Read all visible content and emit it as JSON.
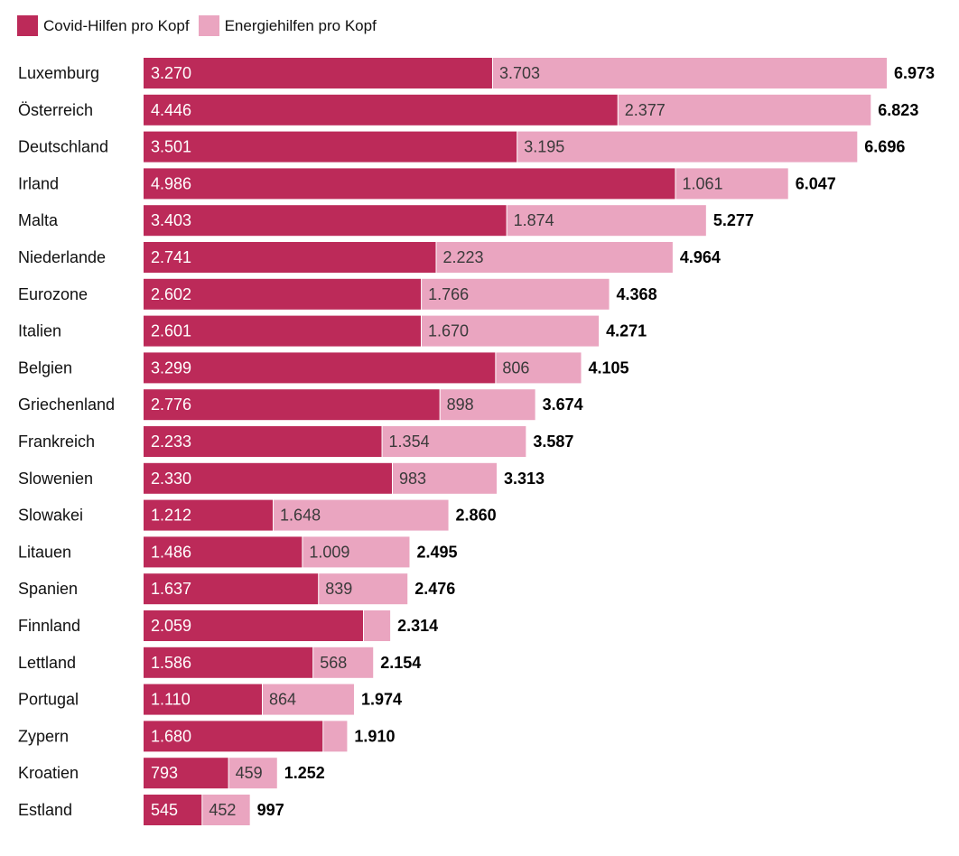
{
  "colors": {
    "covid": "#bc2a59",
    "energie": "#eaa5c0",
    "covid_text": "#ffffff",
    "energie_text": "#3a3a3a",
    "total_text": "#000000"
  },
  "chart_data": {
    "type": "bar",
    "orientation": "horizontal",
    "stacked": true,
    "title": "",
    "xlabel": "",
    "ylabel": "",
    "xlim": [
      0,
      6973
    ],
    "grid": false,
    "legend": "top-left",
    "legend_entries": [
      "Covid-Hilfen pro Kopf",
      "Energiehilfen pro Kopf"
    ],
    "categories": [
      "Luxemburg",
      "Österreich",
      "Deutschland",
      "Irland",
      "Malta",
      "Niederlande",
      "Eurozone",
      "Italien",
      "Belgien",
      "Griechenland",
      "Frankreich",
      "Slowenien",
      "Slowakei",
      "Litauen",
      "Spanien",
      "Finnland",
      "Lettland",
      "Portugal",
      "Zypern",
      "Kroatien",
      "Estland"
    ],
    "series": [
      {
        "name": "Covid-Hilfen pro Kopf",
        "values": [
          3270,
          4446,
          3501,
          4986,
          3403,
          2741,
          2602,
          2601,
          3299,
          2776,
          2233,
          2330,
          1212,
          1486,
          1637,
          2059,
          1586,
          1110,
          1680,
          793,
          545
        ],
        "labels": [
          "3.270",
          "4.446",
          "3.501",
          "4.986",
          "3.403",
          "2.741",
          "2.602",
          "2.601",
          "3.299",
          "2.776",
          "2.233",
          "2.330",
          "1.212",
          "1.486",
          "1.637",
          "2.059",
          "1.586",
          "1.110",
          "1.680",
          "793",
          "545"
        ]
      },
      {
        "name": "Energiehilfen pro Kopf",
        "values": [
          3703,
          2377,
          3195,
          1061,
          1874,
          2223,
          1766,
          1670,
          806,
          898,
          1354,
          983,
          1648,
          1009,
          839,
          255,
          568,
          864,
          230,
          459,
          452
        ],
        "labels": [
          "3.703",
          "2.377",
          "3.195",
          "1.061",
          "1.874",
          "2.223",
          "1.766",
          "1.670",
          "806",
          "898",
          "1.354",
          "983",
          "1.648",
          "1.009",
          "839",
          "",
          "568",
          "864",
          "",
          "459",
          "452"
        ]
      }
    ],
    "totals": [
      6973,
      6823,
      6696,
      6047,
      5277,
      4964,
      4368,
      4271,
      4105,
      3674,
      3587,
      3313,
      2860,
      2495,
      2476,
      2314,
      2154,
      1974,
      1910,
      1252,
      997
    ],
    "total_labels": [
      "6.973",
      "6.823",
      "6.696",
      "6.047",
      "5.277",
      "4.964",
      "4.368",
      "4.271",
      "4.105",
      "3.674",
      "3.587",
      "3.313",
      "2.860",
      "2.495",
      "2.476",
      "2.314",
      "2.154",
      "1.974",
      "1.910",
      "1.252",
      "997"
    ]
  }
}
